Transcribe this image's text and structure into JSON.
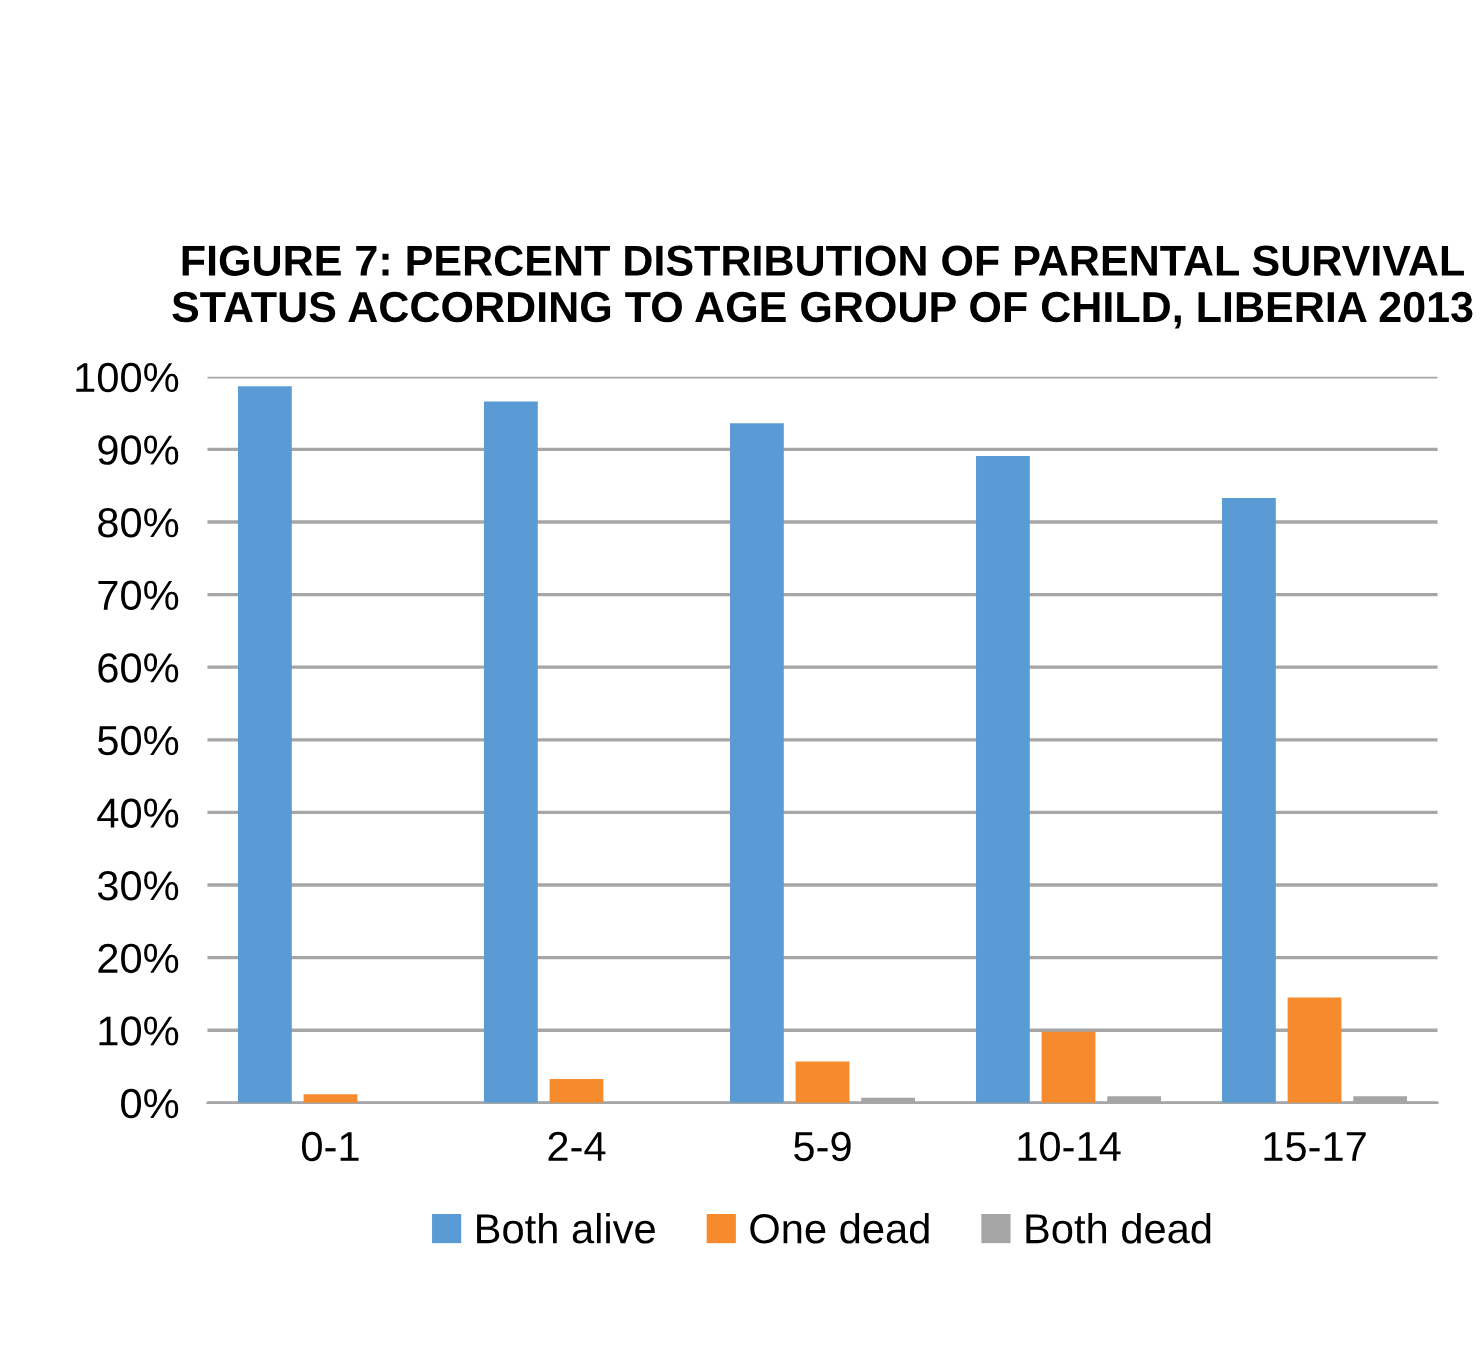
{
  "chart_data": {
    "type": "bar",
    "title": "FIGURE 7: PERCENT DISTRIBUTION OF PARENTAL SURVIVAL STATUS ACCORDING TO AGE GROUP OF CHILD, LIBERIA 2013",
    "categories": [
      "0-1",
      "2-4",
      "5-9",
      "10-14",
      "15-17"
    ],
    "series": [
      {
        "name": "Both alive",
        "color": "#5b9bd5",
        "values": [
          98.7,
          96.6,
          93.6,
          89.1,
          83.3
        ]
      },
      {
        "name": "One dead",
        "color": "#f58b2c",
        "values": [
          1.2,
          3.3,
          5.7,
          9.8,
          14.5
        ]
      },
      {
        "name": "Both dead",
        "color": "#a5a5a5",
        "values": [
          0,
          0,
          0.7,
          0.9,
          0.9
        ]
      }
    ],
    "ylim": [
      0,
      100
    ],
    "yticks": [
      {
        "value": 0,
        "label": "0%"
      },
      {
        "value": 10,
        "label": "10%"
      },
      {
        "value": 20,
        "label": "20%"
      },
      {
        "value": 30,
        "label": "30%"
      },
      {
        "value": 40,
        "label": "40%"
      },
      {
        "value": 50,
        "label": "50%"
      },
      {
        "value": 60,
        "label": "60%"
      },
      {
        "value": 70,
        "label": "70%"
      },
      {
        "value": 80,
        "label": "80%"
      },
      {
        "value": 90,
        "label": "90%"
      },
      {
        "value": 100,
        "label": "100%"
      }
    ],
    "grid": "y",
    "legend": "bottom"
  }
}
